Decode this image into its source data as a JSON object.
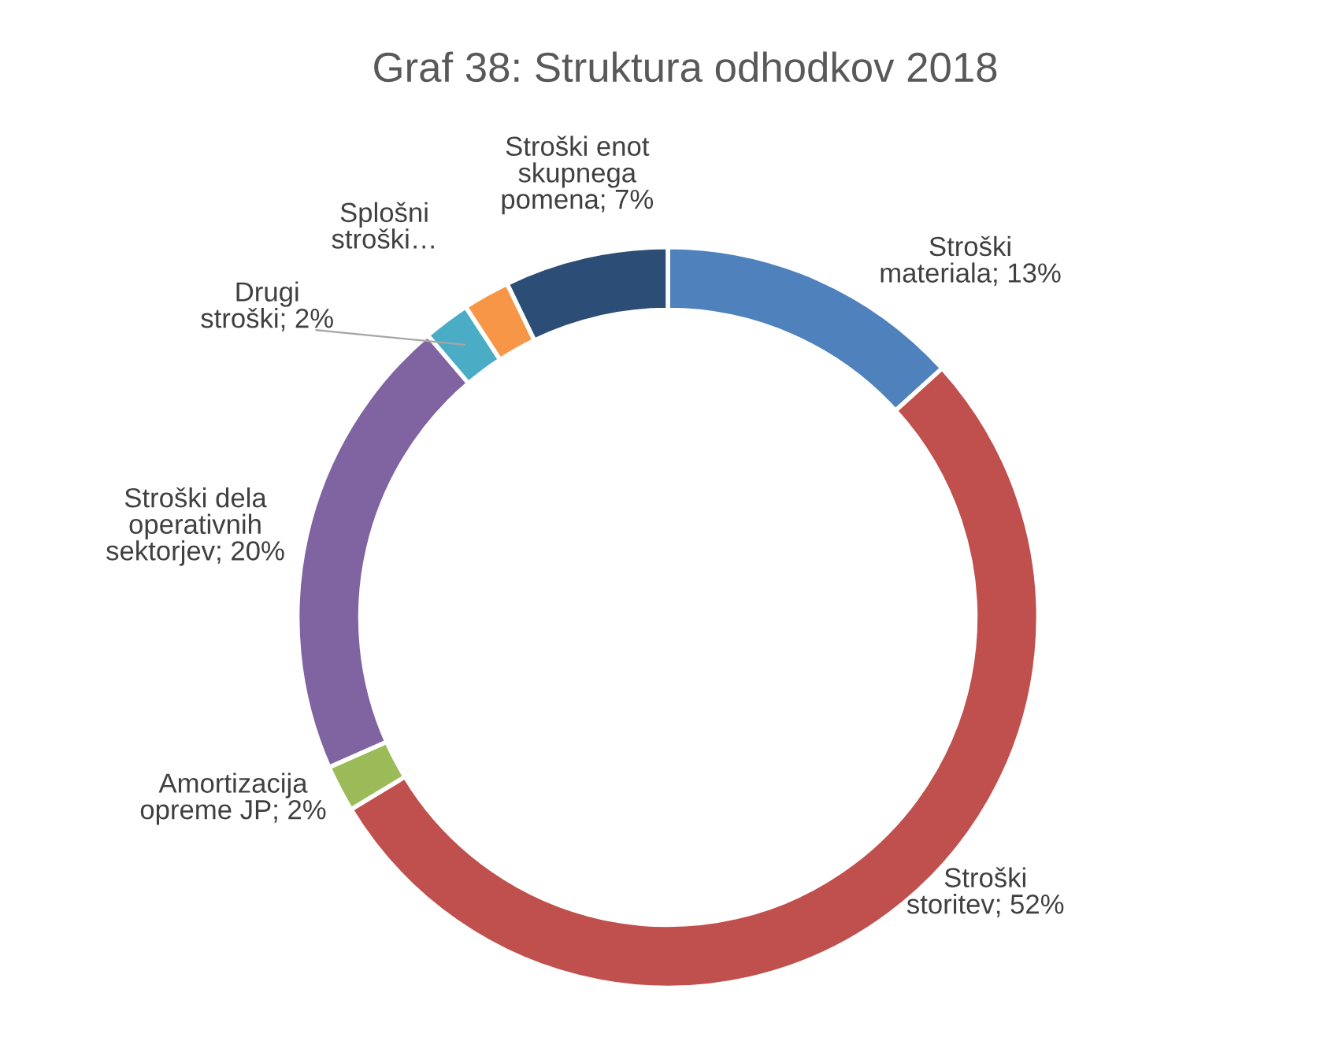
{
  "chart_data": {
    "type": "donut",
    "title": "Graf 38: Struktura odhodkov 2018",
    "categories": [
      "Stroški materiala",
      "Stroški storitev",
      "Amortizacija opreme JP",
      "Stroški dela operativnih sektorjev",
      "Drugi stroški",
      "Splošni stroški…",
      "Stroški enot skupnega pomena"
    ],
    "values": [
      13,
      52,
      2,
      20,
      2,
      2,
      7
    ],
    "value_labels": [
      "13%",
      "52%",
      "2%",
      "20%",
      "2%",
      null,
      "7%"
    ],
    "colors": [
      "#4f81bd",
      "#c0504d",
      "#9bbb59",
      "#8064a2",
      "#4bacc6",
      "#f79646",
      "#2c4d75"
    ],
    "legend": false
  }
}
